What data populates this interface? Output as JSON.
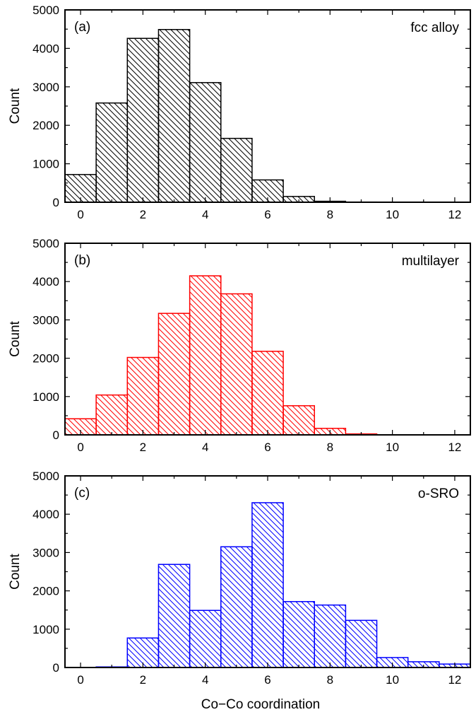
{
  "figure": {
    "xlabel": "Co−Co coordination"
  },
  "chart_data": [
    {
      "type": "bar",
      "panel_label": "(a)",
      "annotation": "fcc alloy",
      "color": "#000000",
      "ylabel": "Count",
      "xlim": [
        -0.5,
        12.5
      ],
      "ylim": [
        0,
        5000
      ],
      "xticks": [
        0,
        2,
        4,
        6,
        8,
        10,
        12
      ],
      "yticks": [
        0,
        1000,
        2000,
        3000,
        4000,
        5000
      ],
      "categories": [
        0,
        1,
        2,
        3,
        4,
        5,
        6,
        7,
        8,
        9,
        10,
        11,
        12
      ],
      "values": [
        720,
        2580,
        4260,
        4490,
        3110,
        1660,
        580,
        150,
        25,
        5,
        0,
        0,
        0
      ]
    },
    {
      "type": "bar",
      "panel_label": "(b)",
      "annotation": "multilayer",
      "color": "#ff0000",
      "ylabel": "Count",
      "xlim": [
        -0.5,
        12.5
      ],
      "ylim": [
        0,
        5000
      ],
      "xticks": [
        0,
        2,
        4,
        6,
        8,
        10,
        12
      ],
      "yticks": [
        0,
        1000,
        2000,
        3000,
        4000,
        5000
      ],
      "categories": [
        0,
        1,
        2,
        3,
        4,
        5,
        6,
        7,
        8,
        9,
        10,
        11,
        12
      ],
      "values": [
        420,
        1040,
        2020,
        3170,
        4150,
        3680,
        2180,
        760,
        170,
        25,
        0,
        0,
        0
      ]
    },
    {
      "type": "bar",
      "panel_label": "(c)",
      "annotation": "o-SRO",
      "color": "#0000ff",
      "ylabel": "Count",
      "xlim": [
        -0.5,
        12.5
      ],
      "ylim": [
        0,
        5000
      ],
      "xticks": [
        0,
        2,
        4,
        6,
        8,
        10,
        12
      ],
      "yticks": [
        0,
        1000,
        2000,
        3000,
        4000,
        5000
      ],
      "categories": [
        0,
        1,
        2,
        3,
        4,
        5,
        6,
        7,
        8,
        9,
        10,
        11,
        12
      ],
      "values": [
        0,
        15,
        770,
        2690,
        1490,
        3150,
        4300,
        1720,
        1630,
        1230,
        260,
        150,
        90
      ]
    }
  ]
}
